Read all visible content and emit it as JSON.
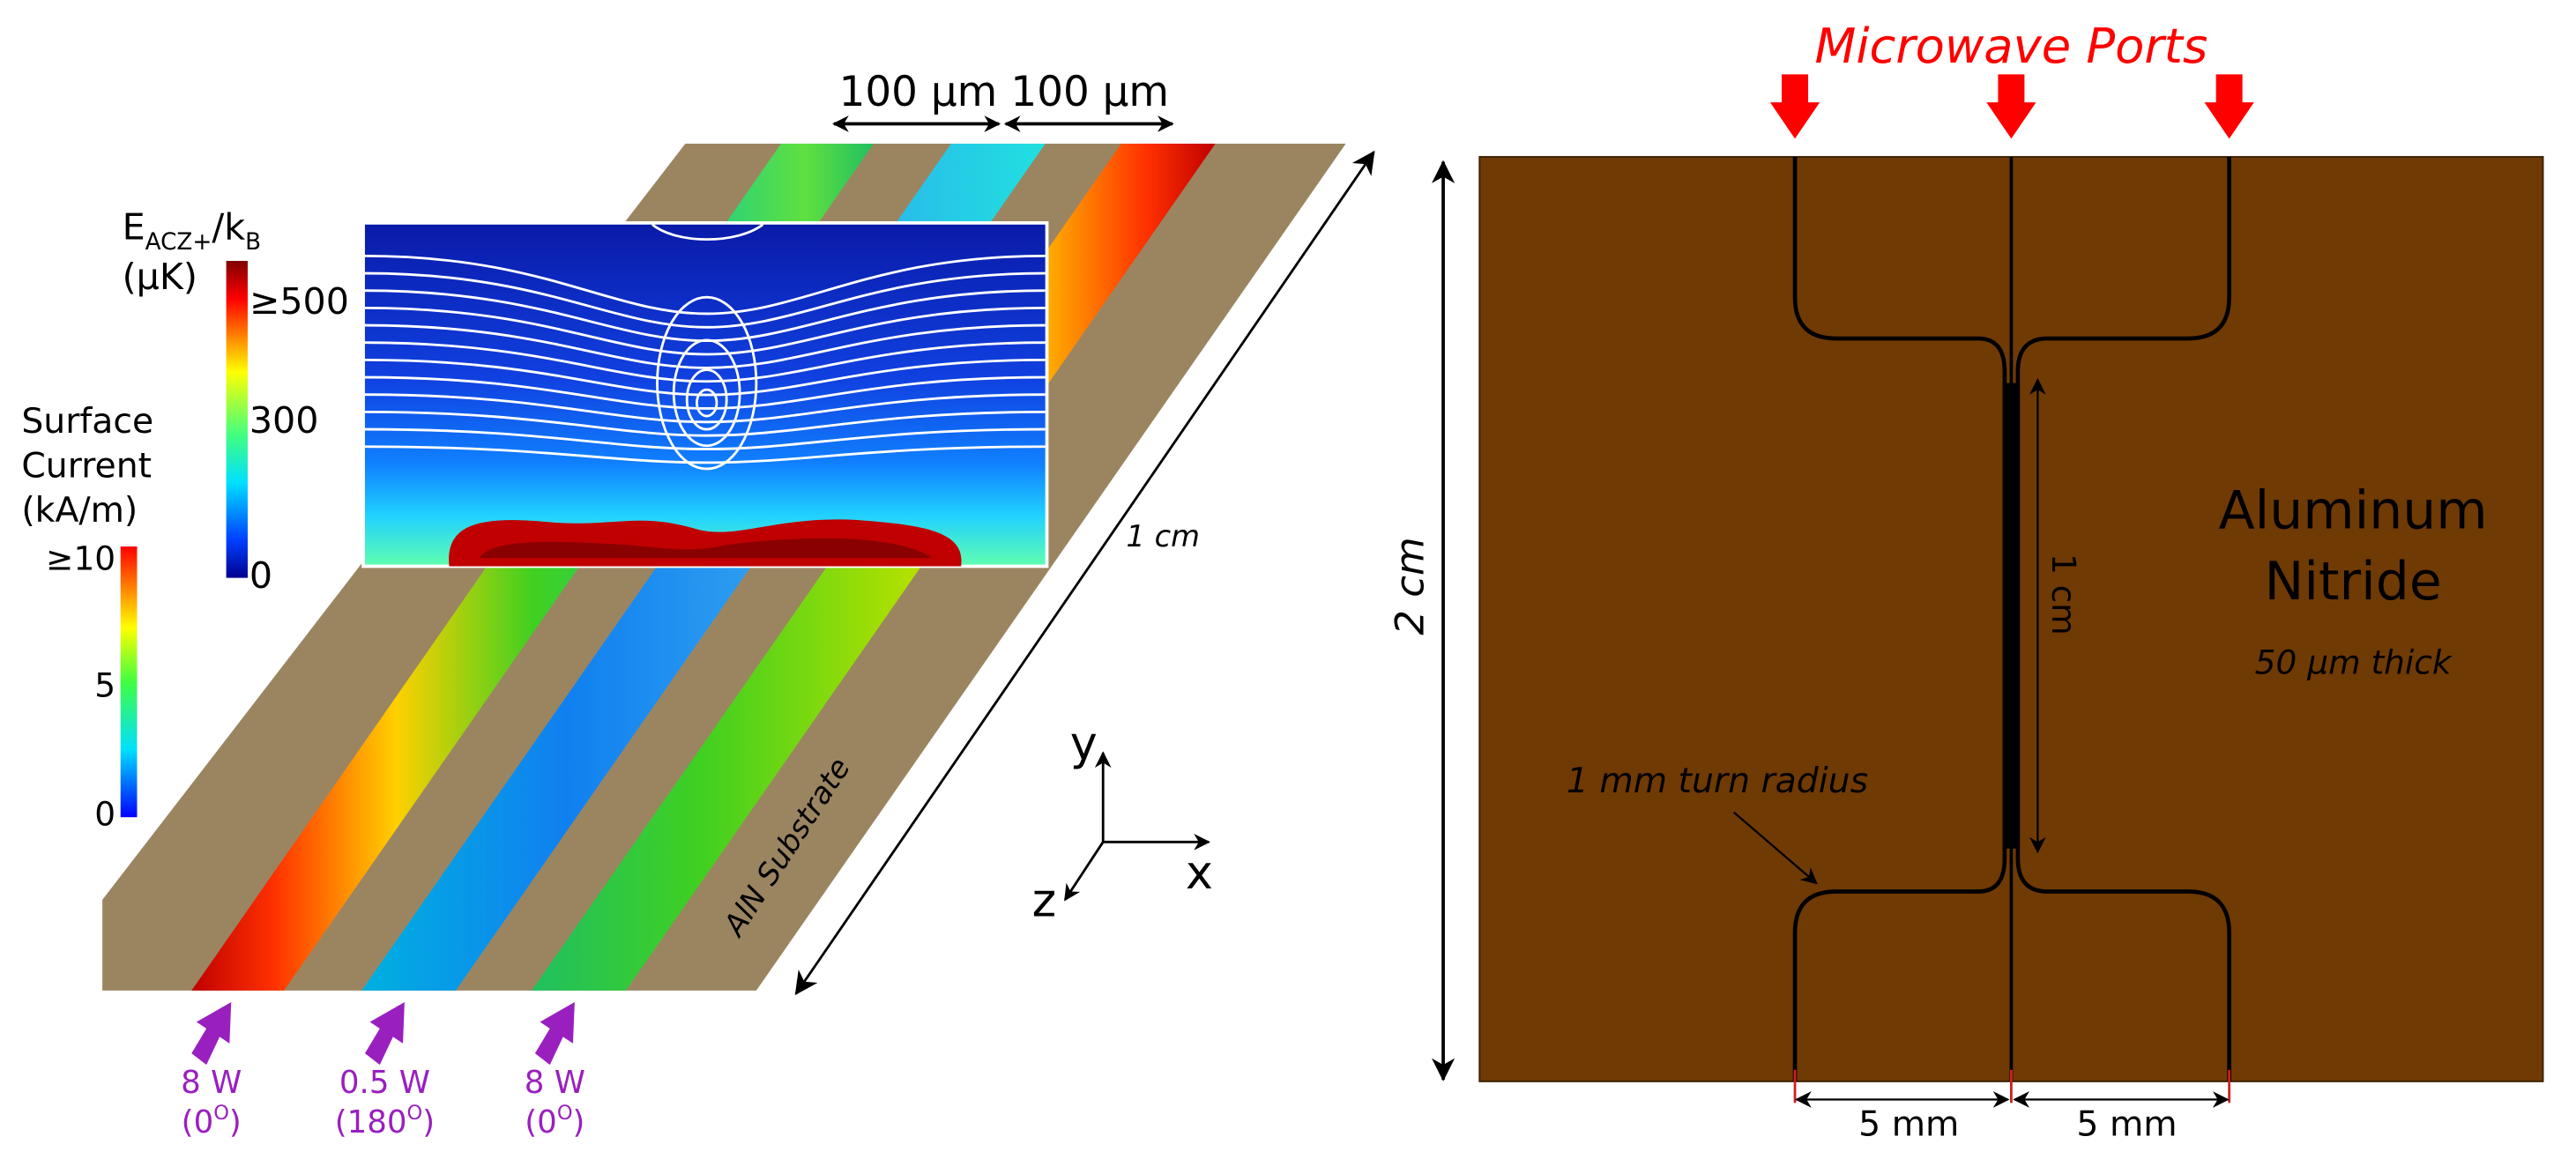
{
  "left_panel": {
    "spacing_labels": [
      "100 µm",
      "100 µm"
    ],
    "energy_colorbar": {
      "title": {
        "symbol": "E",
        "sub1": "ACZ+",
        "mid": "/k",
        "sub2": "B"
      },
      "unit": "(µK)",
      "ticks": [
        "≥500",
        300,
        0
      ]
    },
    "current_colorbar": {
      "title": [
        "Surface",
        "Current",
        "(kA/m)"
      ],
      "ticks": [
        "≥10",
        5,
        0
      ]
    },
    "length_label": "1 cm",
    "substrate_label": "AlN Substrate",
    "axes": {
      "y": "y",
      "x": "x",
      "z": "z"
    },
    "ports": [
      {
        "power": "8 W",
        "phase": "(0",
        "phase_sup": "O",
        "phase_close": ")"
      },
      {
        "power": "0.5 W",
        "phase": "(180",
        "phase_sup": "O",
        "phase_close": ")"
      },
      {
        "power": "8 W",
        "phase": "(0",
        "phase_sup": "O",
        "phase_close": ")"
      }
    ]
  },
  "right_panel": {
    "title": "Microwave Ports",
    "height_label": "2 cm",
    "length_label": "1 cm",
    "material": [
      "Aluminum",
      "Nitride"
    ],
    "thickness": "50 µm thick",
    "turn_label": "1 mm turn radius",
    "spacing_labels": [
      "5 mm",
      "5 mm"
    ]
  }
}
